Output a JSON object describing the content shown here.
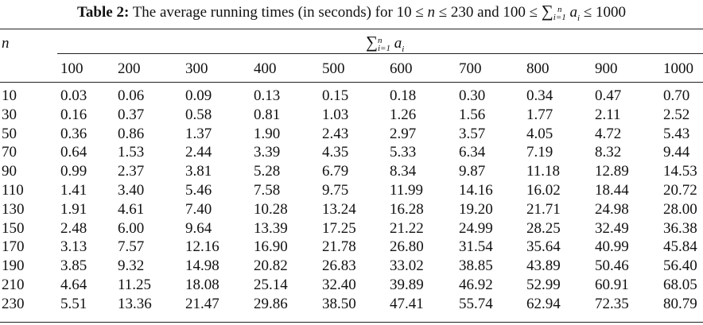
{
  "caption": {
    "label": "Table 2:",
    "text_before": "The average running times (in seconds) for 10 ≤ ",
    "var_n": "n",
    "text_mid": " ≤ 230 and 100 ≤ ",
    "sum_symbol": "∑",
    "sum_upper": "n",
    "sum_lower": "i=1",
    "sum_term": "a",
    "sum_term_sub": "i",
    "text_after": " ≤ 1000"
  },
  "row_header_label": "n",
  "col_group_header": {
    "sum_symbol": "∑",
    "sum_upper": "n",
    "sum_lower": "i=1",
    "term": "a",
    "term_sub": "i"
  },
  "columns": [
    "100",
    "200",
    "300",
    "400",
    "500",
    "600",
    "700",
    "800",
    "900",
    "1000"
  ],
  "rows": [
    {
      "n": "10",
      "values": [
        "0.03",
        "0.06",
        "0.09",
        "0.13",
        "0.15",
        "0.18",
        "0.30",
        "0.34",
        "0.47",
        "0.70"
      ]
    },
    {
      "n": "30",
      "values": [
        "0.16",
        "0.37",
        "0.58",
        "0.81",
        "1.03",
        "1.26",
        "1.56",
        "1.77",
        "2.11",
        "2.52"
      ]
    },
    {
      "n": "50",
      "values": [
        "0.36",
        "0.86",
        "1.37",
        "1.90",
        "2.43",
        "2.97",
        "3.57",
        "4.05",
        "4.72",
        "5.43"
      ]
    },
    {
      "n": "70",
      "values": [
        "0.64",
        "1.53",
        "2.44",
        "3.39",
        "4.35",
        "5.33",
        "6.34",
        "7.19",
        "8.32",
        "9.44"
      ]
    },
    {
      "n": "90",
      "values": [
        "0.99",
        "2.37",
        "3.81",
        "5.28",
        "6.79",
        "8.34",
        "9.87",
        "11.18",
        "12.89",
        "14.53"
      ]
    },
    {
      "n": "110",
      "values": [
        "1.41",
        "3.40",
        "5.46",
        "7.58",
        "9.75",
        "11.99",
        "14.16",
        "16.02",
        "18.44",
        "20.72"
      ]
    },
    {
      "n": "130",
      "values": [
        "1.91",
        "4.61",
        "7.40",
        "10.28",
        "13.24",
        "16.28",
        "19.20",
        "21.71",
        "24.98",
        "28.00"
      ]
    },
    {
      "n": "150",
      "values": [
        "2.48",
        "6.00",
        "9.64",
        "13.39",
        "17.25",
        "21.22",
        "24.99",
        "28.25",
        "32.49",
        "36.38"
      ]
    },
    {
      "n": "170",
      "values": [
        "3.13",
        "7.57",
        "12.16",
        "16.90",
        "21.78",
        "26.80",
        "31.54",
        "35.64",
        "40.99",
        "45.84"
      ]
    },
    {
      "n": "190",
      "values": [
        "3.85",
        "9.32",
        "14.98",
        "20.82",
        "26.83",
        "33.02",
        "38.85",
        "43.89",
        "50.46",
        "56.40"
      ]
    },
    {
      "n": "210",
      "values": [
        "4.64",
        "11.25",
        "18.08",
        "25.14",
        "32.40",
        "39.89",
        "46.92",
        "52.99",
        "60.91",
        "68.05"
      ]
    },
    {
      "n": "230",
      "values": [
        "5.51",
        "13.36",
        "21.47",
        "29.86",
        "38.50",
        "47.41",
        "55.74",
        "62.94",
        "72.35",
        "80.79"
      ]
    }
  ]
}
